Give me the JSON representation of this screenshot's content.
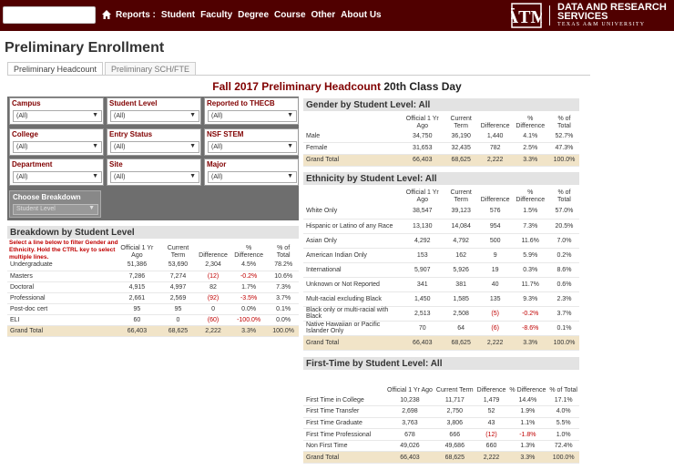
{
  "header": {
    "nav": [
      "Reports :",
      "Student",
      "Faculty",
      "Degree",
      "Course",
      "Other",
      "About Us"
    ],
    "brand_line1": "DATA AND RESEARCH",
    "brand_line2": "SERVICES",
    "brand_line3": "TEXAS A&M UNIVERSITY",
    "logo_text": "ĀTM",
    "accent": "#500000"
  },
  "page_title": "Preliminary Enrollment",
  "tabs": [
    "Preliminary Headcount",
    "Preliminary SCH/FTE"
  ],
  "main_title": {
    "red": "Fall 2017 Preliminary Headcount",
    "black": "20th Class Day"
  },
  "filters": [
    {
      "label": "Campus",
      "value": "(All)"
    },
    {
      "label": "Student Level",
      "value": "(All)"
    },
    {
      "label": "Reported to THECB",
      "value": "(All)"
    },
    {
      "label": "College",
      "value": "(All)"
    },
    {
      "label": "Entry Status",
      "value": "(All)"
    },
    {
      "label": "NSF STEM",
      "value": "(All)"
    },
    {
      "label": "Department",
      "value": "(All)"
    },
    {
      "label": "Site",
      "value": "(All)"
    },
    {
      "label": "Major",
      "value": "(All)"
    }
  ],
  "choose_breakdown": {
    "label": "Choose Breakdown",
    "value": "Student Level"
  },
  "breakdown": {
    "title": "Breakdown by Student Level",
    "hint": "Select a line below to filter Gender and Ethnicity. Hold the CTRL key to select multiple lines.",
    "columns": [
      "Official 1 Yr Ago",
      "Current Term",
      "Difference",
      "% Difference",
      "% of Total"
    ],
    "rows": [
      [
        "Undergraduate",
        "51,386",
        "53,690",
        "2,304",
        "4.5%",
        "78.2%"
      ],
      [
        "Masters",
        "7,286",
        "7,274",
        "(12)",
        "-0.2%",
        "10.6%"
      ],
      [
        "Doctoral",
        "4,915",
        "4,997",
        "82",
        "1.7%",
        "7.3%"
      ],
      [
        "Professional",
        "2,661",
        "2,569",
        "(92)",
        "-3.5%",
        "3.7%"
      ],
      [
        "Post-doc cert",
        "95",
        "95",
        "0",
        "0.0%",
        "0.1%"
      ],
      [
        "ELI",
        "60",
        "0",
        "(60)",
        "-100.0%",
        "0.0%"
      ]
    ],
    "total": [
      "Grand Total",
      "66,403",
      "68,625",
      "2,222",
      "3.3%",
      "100.0%"
    ]
  },
  "gender": {
    "title": "Gender by Student Level: All",
    "columns": [
      "Official 1 Yr Ago",
      "Current Term",
      "Difference",
      "% Difference",
      "% of Total"
    ],
    "rows": [
      [
        "Male",
        "34,750",
        "36,190",
        "1,440",
        "4.1%",
        "52.7%"
      ],
      [
        "Female",
        "31,653",
        "32,435",
        "782",
        "2.5%",
        "47.3%"
      ]
    ],
    "total": [
      "Grand Total",
      "66,403",
      "68,625",
      "2,222",
      "3.3%",
      "100.0%"
    ]
  },
  "ethnicity": {
    "title": "Ethnicity by Student Level: All",
    "columns": [
      "Official 1 Yr Ago",
      "Current Term",
      "Difference",
      "% Difference",
      "% of Total"
    ],
    "rows": [
      [
        "White Only",
        "38,547",
        "39,123",
        "576",
        "1.5%",
        "57.0%"
      ],
      [
        "Hispanic or Latino of any Race",
        "13,130",
        "14,084",
        "954",
        "7.3%",
        "20.5%"
      ],
      [
        "Asian Only",
        "4,292",
        "4,792",
        "500",
        "11.6%",
        "7.0%"
      ],
      [
        "American Indian Only",
        "153",
        "162",
        "9",
        "5.9%",
        "0.2%"
      ],
      [
        "International",
        "5,907",
        "5,926",
        "19",
        "0.3%",
        "8.6%"
      ],
      [
        "Unknown or Not Reported",
        "341",
        "381",
        "40",
        "11.7%",
        "0.6%"
      ],
      [
        "Mult-racial excluding Black",
        "1,450",
        "1,585",
        "135",
        "9.3%",
        "2.3%"
      ],
      [
        "Black only or multi-racial with Black",
        "2,513",
        "2,508",
        "(5)",
        "-0.2%",
        "3.7%"
      ],
      [
        "Native Hawaiian or Pacific Islander Only",
        "70",
        "64",
        "(6)",
        "-8.6%",
        "0.1%"
      ]
    ],
    "total": [
      "Grand Total",
      "66,403",
      "68,625",
      "2,222",
      "3.3%",
      "100.0%"
    ]
  },
  "firsttime": {
    "title": "First-Time by Student Level: All",
    "columns": [
      "Official 1 Yr Ago",
      "Current Term",
      "Difference",
      "% Difference",
      "% of Total"
    ],
    "rows": [
      [
        "First Time in College",
        "10,238",
        "11,717",
        "1,479",
        "14.4%",
        "17.1%"
      ],
      [
        "First Time Transfer",
        "2,698",
        "2,750",
        "52",
        "1.9%",
        "4.0%"
      ],
      [
        "First Time Graduate",
        "3,763",
        "3,806",
        "43",
        "1.1%",
        "5.5%"
      ],
      [
        "First Time Professional",
        "678",
        "666",
        "(12)",
        "-1.8%",
        "1.0%"
      ],
      [
        "Non First Time",
        "49,026",
        "49,686",
        "660",
        "1.3%",
        "72.4%"
      ]
    ],
    "total": [
      "Grand Total",
      "66,403",
      "68,625",
      "2,222",
      "3.3%",
      "100.0%"
    ]
  }
}
